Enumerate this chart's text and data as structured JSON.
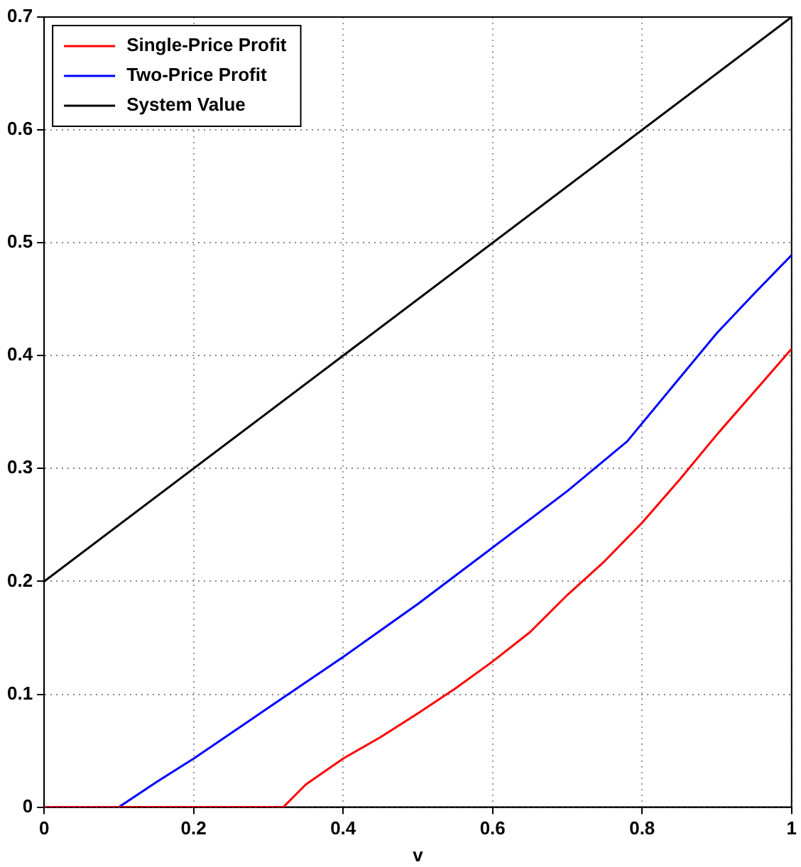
{
  "chart_data": {
    "type": "line",
    "xlabel": "v",
    "xlim": [
      0,
      1
    ],
    "xticks": [
      0,
      0.2,
      0.4,
      0.6,
      0.8,
      1
    ],
    "ylim": [
      0,
      0.7
    ],
    "yticks": [
      0,
      0.1,
      0.2,
      0.3,
      0.4,
      0.5,
      0.6,
      0.7
    ],
    "grid": true,
    "legend": "top left",
    "marker": "none",
    "line_style": "solid",
    "series": [
      {
        "name": "Single-Price Profit",
        "color": "#ff0000",
        "x": [
          0,
          0.1,
          0.2,
          0.3,
          0.32,
          0.35,
          0.4,
          0.45,
          0.5,
          0.55,
          0.6,
          0.65,
          0.7,
          0.75,
          0.8,
          0.85,
          0.9,
          0.95,
          1
        ],
        "values": [
          0,
          0,
          0,
          0,
          0,
          0.02,
          0.043,
          0.062,
          0.083,
          0.105,
          0.129,
          0.155,
          0.188,
          0.218,
          0.252,
          0.29,
          0.33,
          0.368,
          0.406
        ]
      },
      {
        "name": "Two-Price Profit",
        "color": "#0000ff",
        "x": [
          0,
          0.05,
          0.1,
          0.15,
          0.2,
          0.3,
          0.4,
          0.5,
          0.6,
          0.7,
          0.78,
          0.85,
          0.9,
          0.95,
          1
        ],
        "values": [
          0,
          0,
          0,
          0.022,
          0.043,
          0.088,
          0.133,
          0.18,
          0.23,
          0.28,
          0.324,
          0.38,
          0.42,
          0.455,
          0.489
        ]
      },
      {
        "name": "System Value",
        "color": "#000000",
        "x": [
          0,
          1
        ],
        "values": [
          0.2,
          0.7
        ]
      }
    ]
  }
}
